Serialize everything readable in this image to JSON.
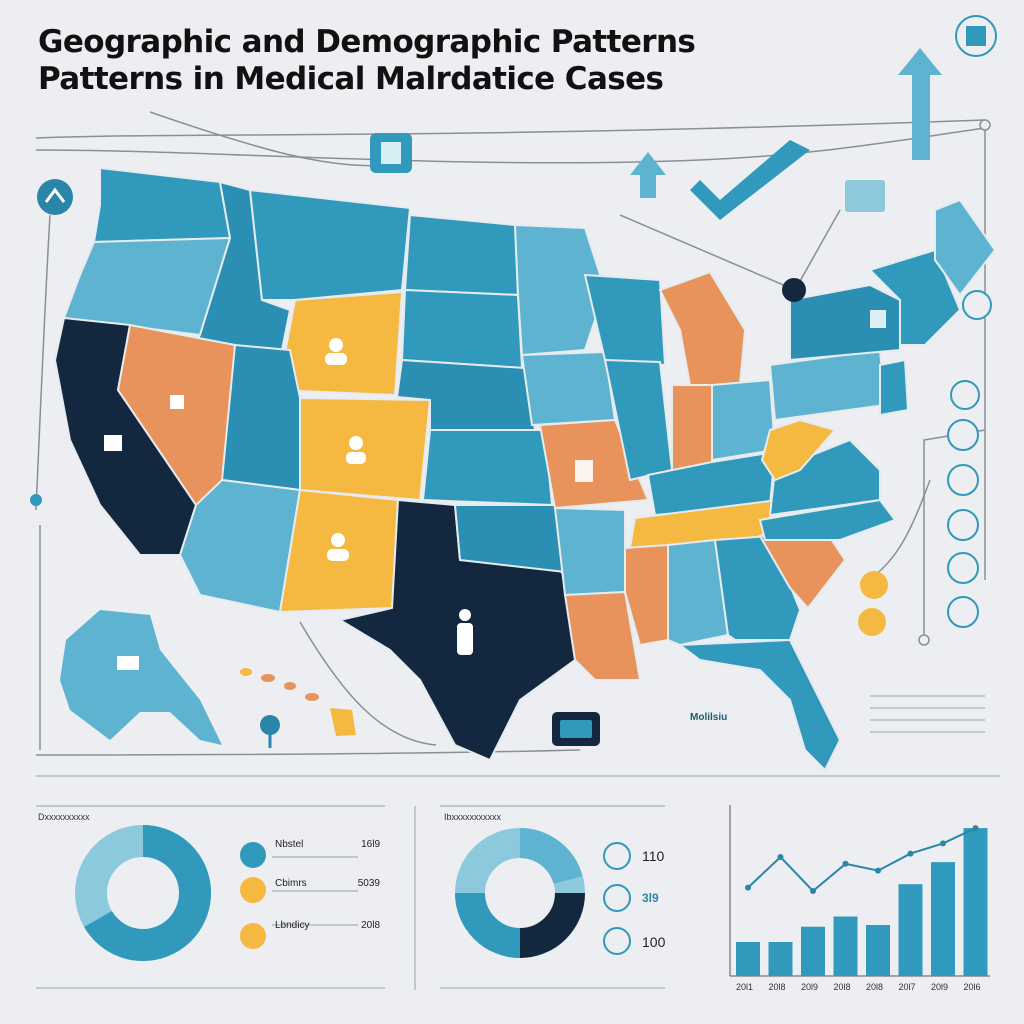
{
  "title": {
    "line1": "Geographic and Demographic Patterns",
    "line2": "Patterns in Medical Malrdatice Cases"
  },
  "colors": {
    "navy": "#13283f",
    "teal": "#3199bb",
    "light_teal": "#5eb4d0",
    "pale_teal": "#8cc9dc",
    "orange": "#e7935b",
    "yellow": "#f5b942",
    "background": "#eceef1"
  },
  "map": {
    "label": "Molilsiu",
    "icons": [
      "building-icon",
      "person-icon",
      "hospital-icon",
      "doctor-icon",
      "checkmark-icon",
      "arrow-up-icon",
      "pin-icon"
    ],
    "side_icons": [
      "document-icon",
      "stethoscope-icon",
      "syringe-icon",
      "medicine-icon",
      "briefcase-icon",
      "clipboard-icon"
    ]
  },
  "panel_left": {
    "caption": "Dxxxxxxxxxx",
    "legend": [
      {
        "label": "Nbstel",
        "value": "16l9",
        "color": "#3199bb",
        "icon": "stethoscope-icon"
      },
      {
        "label": "Cbimrs",
        "value": "5039",
        "color": "#f5b942",
        "icon": "pill-icon"
      },
      {
        "label": "Lbndicy",
        "value": "20l8",
        "color": "#f5b942",
        "icon": "warning-icon"
      }
    ]
  },
  "panel_mid": {
    "caption": "Ibxxxxxxxxxxx",
    "values": [
      "110",
      "3l9",
      "100"
    ],
    "icons": [
      "pill-icon",
      "scale-icon",
      "bell-icon"
    ]
  },
  "chart_data": {
    "type": "bar",
    "categories": [
      "2011",
      "2018",
      "2019",
      "2018",
      "2018",
      "2017",
      "2019",
      "2016"
    ],
    "values": [
      20,
      20,
      29,
      35,
      30,
      54,
      67,
      87
    ],
    "line_values": [
      52,
      70,
      50,
      66,
      62,
      72,
      78,
      87
    ],
    "ylim": [
      0,
      100
    ],
    "xtick_labels": [
      "20l1",
      "20l8",
      "20l9",
      "20l8",
      "20l8",
      "20l7",
      "20l9",
      "20l6"
    ]
  }
}
